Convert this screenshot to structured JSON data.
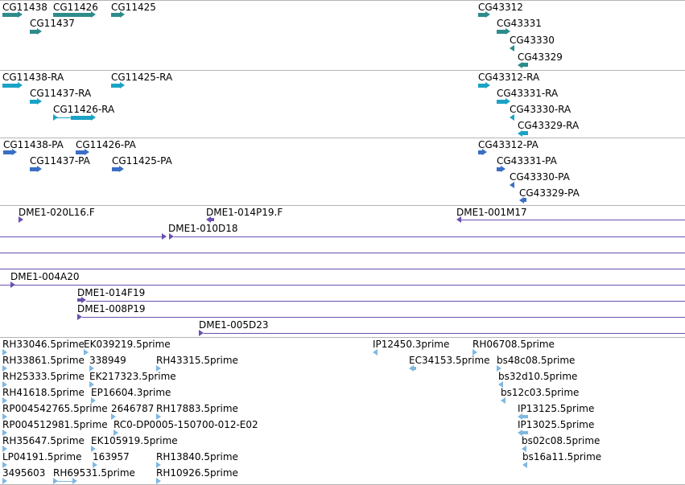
{
  "colors": {
    "gene": "#2e8b8b",
    "transcript": "#1aa3c4",
    "protein": "#3a6fc4",
    "clone": "#6a50b0",
    "est": "#7fb8e0",
    "separator": "#b4b4b4"
  },
  "tracks": {
    "genes": [
      {
        "label": "CG11438"
      },
      {
        "label": "CG11426"
      },
      {
        "label": "CG11425"
      },
      {
        "label": "CG11437"
      },
      {
        "label": "CG43312"
      },
      {
        "label": "CG43331"
      },
      {
        "label": "CG43330"
      },
      {
        "label": "CG43329"
      }
    ],
    "transcripts": [
      {
        "label": "CG11438-RA"
      },
      {
        "label": "CG11425-RA"
      },
      {
        "label": "CG11437-RA"
      },
      {
        "label": "CG11426-RA"
      },
      {
        "label": "CG43312-RA"
      },
      {
        "label": "CG43331-RA"
      },
      {
        "label": "CG43330-RA"
      },
      {
        "label": "CG43329-RA"
      }
    ],
    "proteins": [
      {
        "label": "CG11438-PA"
      },
      {
        "label": "CG11426-PA"
      },
      {
        "label": "CG11437-PA"
      },
      {
        "label": "CG11425-PA"
      },
      {
        "label": "CG43312-PA"
      },
      {
        "label": "CG43331-PA"
      },
      {
        "label": "CG43330-PA"
      },
      {
        "label": "CG43329-PA"
      }
    ],
    "clones": [
      {
        "label": "DME1-020L16.F"
      },
      {
        "label": "DME1-014P19.F"
      },
      {
        "label": "DME1-001M17"
      },
      {
        "label": "DME1-010D18"
      },
      {
        "label": "DME1-004A20"
      },
      {
        "label": "DME1-014F19"
      },
      {
        "label": "DME1-008P19"
      },
      {
        "label": "DME1-005D23"
      }
    ],
    "ests": [
      {
        "label": "RH33046.5prime"
      },
      {
        "label": "EK039219.5prime"
      },
      {
        "label": "IP12450.3prime"
      },
      {
        "label": "RH06708.5prime"
      },
      {
        "label": "RH33861.5prime"
      },
      {
        "label": "338949"
      },
      {
        "label": "RH43315.5prime"
      },
      {
        "label": "EC34153.5prime"
      },
      {
        "label": "bs48c08.5prime"
      },
      {
        "label": "RH25333.5prime"
      },
      {
        "label": "EK217323.5prime"
      },
      {
        "label": "bs32d10.5prime"
      },
      {
        "label": "RH41618.5prime"
      },
      {
        "label": "EP16604.3prime"
      },
      {
        "label": "bs12c03.5prime"
      },
      {
        "label": "RP004542765.5prime"
      },
      {
        "label": "2646787"
      },
      {
        "label": "RH17883.5prime"
      },
      {
        "label": "IP13125.5prime"
      },
      {
        "label": "RP004512981.5prime"
      },
      {
        "label": "RC0-DP0005-150700-012-E02"
      },
      {
        "label": "IP13025.5prime"
      },
      {
        "label": "RH35647.5prime"
      },
      {
        "label": "EK105919.5prime"
      },
      {
        "label": "bs02c08.5prime"
      },
      {
        "label": "LP04191.5prime"
      },
      {
        "label": "163957"
      },
      {
        "label": "RH13840.5prime"
      },
      {
        "label": "bs16a11.5prime"
      },
      {
        "label": "3495603"
      },
      {
        "label": "RH69531.5prime"
      },
      {
        "label": "RH10926.5prime"
      }
    ]
  }
}
